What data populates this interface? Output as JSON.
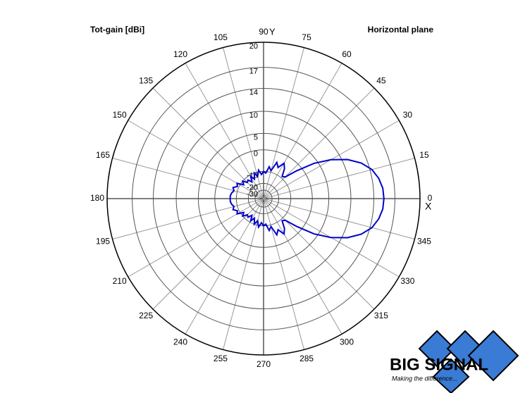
{
  "chart_data": {
    "type": "polar",
    "title": "Tot-gain [dBi]",
    "subtitle": "Horizontal plane",
    "x_label": "X",
    "y_label": "Y",
    "rscale": "arrl-log",
    "rlim": [
      -30,
      20
    ],
    "rticks": [
      -30,
      -20,
      -10,
      0,
      5,
      10,
      14,
      17,
      20
    ],
    "thetaticks": [
      0,
      15,
      30,
      45,
      60,
      75,
      90,
      105,
      120,
      135,
      150,
      165,
      180,
      195,
      210,
      225,
      240,
      255,
      270,
      285,
      300,
      315,
      330,
      345
    ],
    "grid": true,
    "series": [
      {
        "color": "#0000cc",
        "theta": [
          0,
          5,
          10,
          15,
          20,
          25,
          30,
          35,
          40,
          45,
          50,
          55,
          60,
          65,
          70,
          75,
          80,
          85,
          90,
          95,
          100,
          105,
          110,
          115,
          120,
          125,
          130,
          135,
          140,
          145,
          150,
          155,
          160,
          165,
          170,
          175,
          180,
          185,
          190,
          195,
          200,
          205,
          210,
          215,
          220,
          225,
          230,
          235,
          240,
          245,
          250,
          255,
          260,
          265,
          270,
          275,
          280,
          285,
          290,
          295,
          300,
          305,
          310,
          315,
          320,
          325,
          330,
          335,
          340,
          345,
          350,
          355
        ],
        "values": [
          15.5,
          15.4,
          15,
          14.3,
          13,
          11,
          8,
          4,
          -2,
          -8,
          -9,
          -5,
          -3,
          -6,
          -4,
          -9,
          -7,
          -11,
          -10,
          -12,
          -9,
          -13,
          -10,
          -14,
          -11,
          -15,
          -12,
          -13,
          -10,
          -12,
          -8,
          -9,
          -7,
          -8,
          -7,
          -6.5,
          -6.5,
          -6.5,
          -7,
          -8,
          -7,
          -9,
          -8,
          -12,
          -10,
          -13,
          -12,
          -15,
          -11,
          -14,
          -10,
          -13,
          -9,
          -12,
          -10,
          -11,
          -7,
          -9,
          -4,
          -6,
          -3,
          -5,
          -9,
          -8,
          -2,
          4,
          8,
          11,
          13,
          14.3,
          15,
          15.4
        ]
      }
    ]
  },
  "logo": {
    "name": "BIG SIGNAL",
    "tagline": "Making the difference..."
  }
}
